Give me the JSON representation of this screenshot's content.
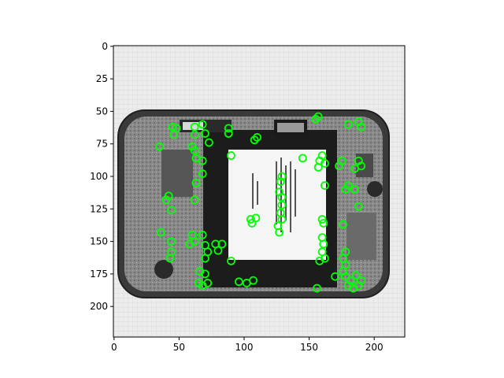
{
  "chart_data": {
    "type": "image",
    "title": "",
    "xlabel": "",
    "ylabel": "",
    "image_size": [
      224,
      224
    ],
    "xlim": [
      -0.5,
      223.5
    ],
    "ylim": [
      223.5,
      -0.5
    ],
    "xticks": [
      0,
      50,
      100,
      150,
      200
    ],
    "yticks": [
      0,
      25,
      50,
      75,
      100,
      125,
      150,
      175,
      200
    ],
    "image_description": "grayscale photo of the inside of a smartphone: circuit boards around a central battery with a white label",
    "marker": {
      "shape": "circle",
      "color": "#00ff00",
      "fill": "none"
    },
    "keypoints": [
      {
        "x": 45,
        "y": 62
      },
      {
        "x": 48,
        "y": 63
      },
      {
        "x": 46,
        "y": 68
      },
      {
        "x": 62,
        "y": 62
      },
      {
        "x": 68,
        "y": 60
      },
      {
        "x": 62,
        "y": 68
      },
      {
        "x": 70,
        "y": 67
      },
      {
        "x": 73,
        "y": 74
      },
      {
        "x": 88,
        "y": 63
      },
      {
        "x": 88,
        "y": 67
      },
      {
        "x": 110,
        "y": 70
      },
      {
        "x": 108,
        "y": 72
      },
      {
        "x": 60,
        "y": 77
      },
      {
        "x": 62,
        "y": 80
      },
      {
        "x": 63,
        "y": 86
      },
      {
        "x": 68,
        "y": 88
      },
      {
        "x": 35,
        "y": 77
      },
      {
        "x": 90,
        "y": 84
      },
      {
        "x": 68,
        "y": 98
      },
      {
        "x": 63,
        "y": 105
      },
      {
        "x": 62,
        "y": 118
      },
      {
        "x": 40,
        "y": 118
      },
      {
        "x": 42,
        "y": 115
      },
      {
        "x": 44,
        "y": 126
      },
      {
        "x": 36,
        "y": 143
      },
      {
        "x": 60,
        "y": 145
      },
      {
        "x": 62,
        "y": 150
      },
      {
        "x": 58,
        "y": 152
      },
      {
        "x": 44,
        "y": 150
      },
      {
        "x": 44,
        "y": 158
      },
      {
        "x": 43,
        "y": 163
      },
      {
        "x": 68,
        "y": 145
      },
      {
        "x": 70,
        "y": 153
      },
      {
        "x": 72,
        "y": 158
      },
      {
        "x": 70,
        "y": 163
      },
      {
        "x": 78,
        "y": 152
      },
      {
        "x": 83,
        "y": 152
      },
      {
        "x": 80,
        "y": 157
      },
      {
        "x": 90,
        "y": 165
      },
      {
        "x": 66,
        "y": 173
      },
      {
        "x": 70,
        "y": 175
      },
      {
        "x": 65,
        "y": 182
      },
      {
        "x": 68,
        "y": 184
      },
      {
        "x": 72,
        "y": 182
      },
      {
        "x": 96,
        "y": 181
      },
      {
        "x": 102,
        "y": 182
      },
      {
        "x": 107,
        "y": 180
      },
      {
        "x": 105,
        "y": 133
      },
      {
        "x": 106,
        "y": 136
      },
      {
        "x": 109,
        "y": 132
      },
      {
        "x": 129,
        "y": 100
      },
      {
        "x": 128,
        "y": 104
      },
      {
        "x": 127,
        "y": 112
      },
      {
        "x": 129,
        "y": 116
      },
      {
        "x": 129,
        "y": 122
      },
      {
        "x": 128,
        "y": 128
      },
      {
        "x": 129,
        "y": 133
      },
      {
        "x": 126,
        "y": 138
      },
      {
        "x": 127,
        "y": 143
      },
      {
        "x": 157,
        "y": 54
      },
      {
        "x": 155,
        "y": 56
      },
      {
        "x": 145,
        "y": 86
      },
      {
        "x": 160,
        "y": 84
      },
      {
        "x": 158,
        "y": 88
      },
      {
        "x": 162,
        "y": 90
      },
      {
        "x": 157,
        "y": 93
      },
      {
        "x": 162,
        "y": 107
      },
      {
        "x": 160,
        "y": 133
      },
      {
        "x": 161,
        "y": 136
      },
      {
        "x": 160,
        "y": 147
      },
      {
        "x": 161,
        "y": 152
      },
      {
        "x": 160,
        "y": 158
      },
      {
        "x": 162,
        "y": 163
      },
      {
        "x": 158,
        "y": 165
      },
      {
        "x": 156,
        "y": 186
      },
      {
        "x": 180,
        "y": 60
      },
      {
        "x": 188,
        "y": 58
      },
      {
        "x": 190,
        "y": 62
      },
      {
        "x": 175,
        "y": 88
      },
      {
        "x": 173,
        "y": 92
      },
      {
        "x": 188,
        "y": 88
      },
      {
        "x": 190,
        "y": 92
      },
      {
        "x": 185,
        "y": 94
      },
      {
        "x": 180,
        "y": 107
      },
      {
        "x": 178,
        "y": 110
      },
      {
        "x": 185,
        "y": 110
      },
      {
        "x": 188,
        "y": 123
      },
      {
        "x": 176,
        "y": 137
      },
      {
        "x": 178,
        "y": 158
      },
      {
        "x": 176,
        "y": 163
      },
      {
        "x": 178,
        "y": 168
      },
      {
        "x": 176,
        "y": 173
      },
      {
        "x": 178,
        "y": 177
      },
      {
        "x": 170,
        "y": 177
      },
      {
        "x": 182,
        "y": 180
      },
      {
        "x": 186,
        "y": 176
      },
      {
        "x": 190,
        "y": 180
      },
      {
        "x": 188,
        "y": 184
      },
      {
        "x": 180,
        "y": 184
      },
      {
        "x": 184,
        "y": 186
      }
    ]
  }
}
